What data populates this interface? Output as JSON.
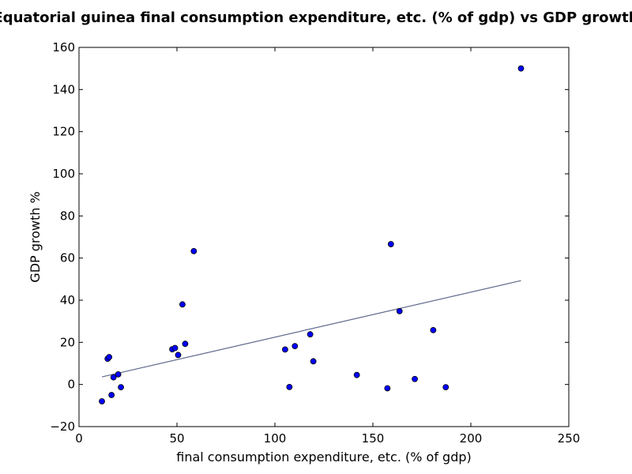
{
  "chart_data": {
    "type": "scatter",
    "title": "Equatorial guinea final consumption expenditure, etc. (% of gdp) vs GDP growth",
    "xlabel": "final consumption expenditure, etc. (% of gdp)",
    "ylabel": "GDP growth %",
    "xlim": [
      0,
      250
    ],
    "ylim": [
      -20,
      160
    ],
    "xticks": [
      0,
      50,
      100,
      150,
      200,
      250
    ],
    "yticks": [
      -20,
      0,
      20,
      40,
      60,
      80,
      100,
      120,
      140,
      160
    ],
    "xtick_labels": [
      "0",
      "50",
      "100",
      "150",
      "200",
      "250"
    ],
    "ytick_labels": [
      "−20",
      "0",
      "20",
      "40",
      "60",
      "80",
      "100",
      "120",
      "140",
      "160"
    ],
    "grid": false,
    "points": [
      {
        "x": 11.7,
        "y": -8.0
      },
      {
        "x": 14.6,
        "y": 12.2
      },
      {
        "x": 15.4,
        "y": 13.0
      },
      {
        "x": 16.6,
        "y": -5.0
      },
      {
        "x": 17.6,
        "y": 3.4
      },
      {
        "x": 20.0,
        "y": 4.8
      },
      {
        "x": 21.4,
        "y": -1.3
      },
      {
        "x": 47.6,
        "y": 16.7
      },
      {
        "x": 49.0,
        "y": 17.3
      },
      {
        "x": 50.6,
        "y": 14.0
      },
      {
        "x": 52.8,
        "y": 38.0
      },
      {
        "x": 54.2,
        "y": 19.3
      },
      {
        "x": 58.6,
        "y": 63.3
      },
      {
        "x": 105.2,
        "y": 16.6
      },
      {
        "x": 107.4,
        "y": -1.2
      },
      {
        "x": 110.2,
        "y": 18.2
      },
      {
        "x": 118.0,
        "y": 23.8
      },
      {
        "x": 119.6,
        "y": 11.0
      },
      {
        "x": 141.8,
        "y": 4.5
      },
      {
        "x": 157.4,
        "y": -1.8
      },
      {
        "x": 159.2,
        "y": 66.6
      },
      {
        "x": 163.6,
        "y": 34.8
      },
      {
        "x": 171.4,
        "y": 2.6
      },
      {
        "x": 180.8,
        "y": 25.8
      },
      {
        "x": 187.2,
        "y": -1.3
      },
      {
        "x": 225.6,
        "y": 150.0
      }
    ],
    "trendline": {
      "x": [
        11.7,
        225.6
      ],
      "y": [
        3.6,
        49.3
      ]
    },
    "colors": {
      "point_fill": "#0000ff",
      "point_edge": "#000000",
      "trendline": "#5f6b8c",
      "frame": "#000000"
    }
  }
}
